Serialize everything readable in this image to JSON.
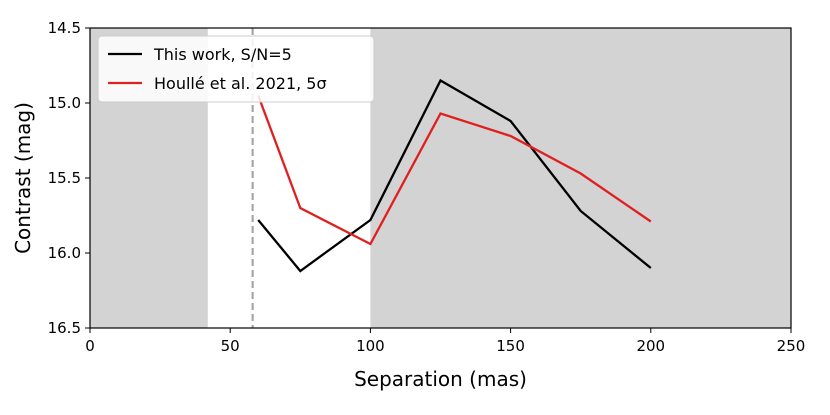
{
  "chart_data": {
    "type": "line",
    "xlabel": "Separation (mas)",
    "ylabel": "Contrast (mag)",
    "xlim": [
      0,
      250
    ],
    "ylim": [
      16.5,
      14.5
    ],
    "y_inverted": true,
    "xticks": [
      0,
      50,
      100,
      150,
      200,
      250
    ],
    "xtick_labels": [
      "0",
      "50",
      "100",
      "150",
      "200",
      "250"
    ],
    "yticks": [
      14.5,
      15.0,
      15.5,
      16.0,
      16.5
    ],
    "ytick_labels": [
      "14.5",
      "15.0",
      "15.5",
      "16.0",
      "16.5"
    ],
    "grid": false,
    "legend_position": "top-left",
    "shaded_regions": [
      {
        "x_range": [
          0,
          42
        ],
        "color": "#d3d3d3"
      },
      {
        "x_range": [
          100,
          250
        ],
        "color": "#d3d3d3"
      }
    ],
    "vertical_line": {
      "x": 58,
      "style": "dashed",
      "color": "#a6a6a6"
    },
    "series": [
      {
        "name": "This work, S/N=5",
        "color": "#000000",
        "x": [
          60,
          75,
          100,
          125,
          150,
          175,
          200
        ],
        "y": [
          15.78,
          16.12,
          15.78,
          14.85,
          15.12,
          15.72,
          16.1
        ]
      },
      {
        "name": "Houllé et al. 2021, 5σ",
        "color": "#e02020",
        "x": [
          60,
          75,
          100,
          125,
          150,
          175,
          200
        ],
        "y": [
          14.95,
          15.7,
          15.94,
          15.07,
          15.22,
          15.47,
          15.79
        ]
      }
    ]
  }
}
